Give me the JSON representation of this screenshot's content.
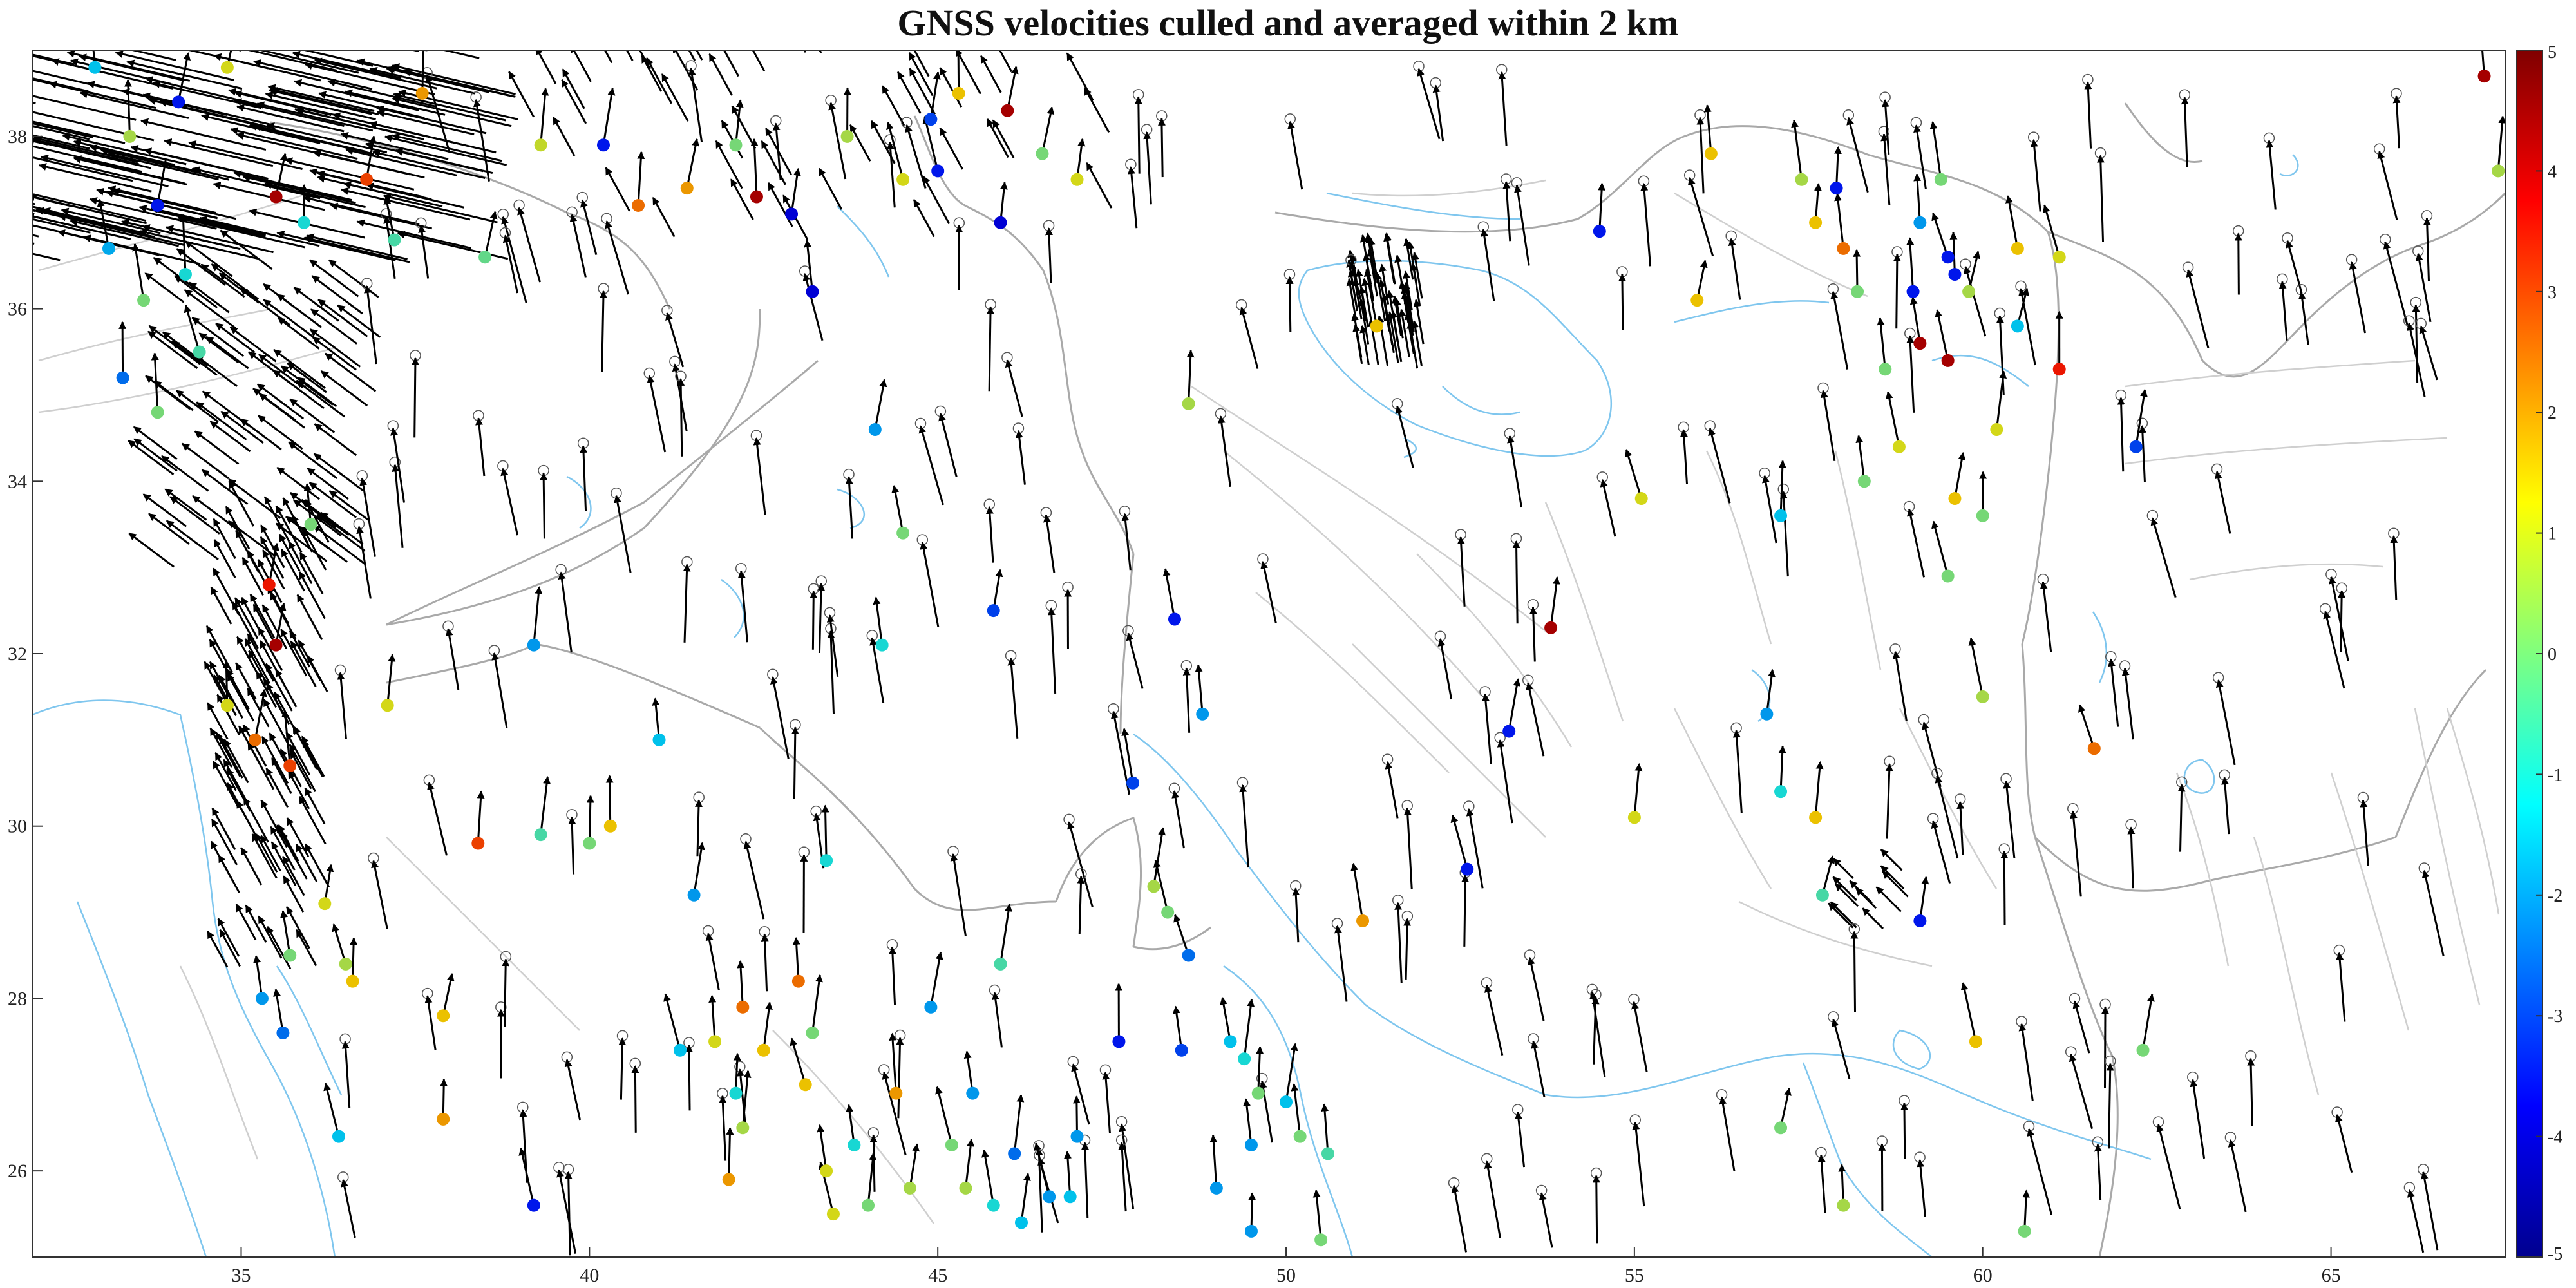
{
  "title": "GNSS velocities culled and averaged within 2 km",
  "map": {
    "lon_range": [
      32,
      67.5
    ],
    "lat_range": [
      25,
      39
    ],
    "lon_ticks": [
      35,
      40,
      45,
      50,
      55,
      60,
      65
    ],
    "lat_ticks": [
      26,
      28,
      30,
      32,
      34,
      36,
      38
    ],
    "coastline_color": "#7fc6ee",
    "border_color": "#a9a9a9",
    "fault_color": "#cfcfcf",
    "arrow_color": "#000000"
  },
  "colorbar": {
    "range": [
      -5,
      5
    ],
    "ticks": [
      5,
      4,
      3,
      2,
      1,
      0,
      -1,
      -2,
      -3,
      -4,
      -5
    ],
    "colormap": "jet",
    "label": ""
  },
  "stations": [
    {
      "lon": 32.9,
      "lat": 38.8,
      "v": -1.5
    },
    {
      "lon": 33.4,
      "lat": 38.0,
      "v": 0.5
    },
    {
      "lon": 33.8,
      "lat": 37.2,
      "v": -3.5
    },
    {
      "lon": 33.1,
      "lat": 36.7,
      "v": -1.8
    },
    {
      "lon": 34.2,
      "lat": 36.4,
      "v": -1.0
    },
    {
      "lon": 33.6,
      "lat": 36.1,
      "v": 0.0
    },
    {
      "lon": 34.4,
      "lat": 35.5,
      "v": -0.5
    },
    {
      "lon": 33.3,
      "lat": 35.2,
      "v": -2.5
    },
    {
      "lon": 33.8,
      "lat": 34.8,
      "v": 0.0
    },
    {
      "lon": 34.1,
      "lat": 38.4,
      "v": -3.5
    },
    {
      "lon": 34.8,
      "lat": 38.8,
      "v": 1.0
    },
    {
      "lon": 35.5,
      "lat": 37.3,
      "v": 4.5
    },
    {
      "lon": 35.9,
      "lat": 37.0,
      "v": -1.0
    },
    {
      "lon": 36.8,
      "lat": 37.5,
      "v": 3.0
    },
    {
      "lon": 37.2,
      "lat": 36.8,
      "v": -0.5
    },
    {
      "lon": 37.6,
      "lat": 38.5,
      "v": 2.0
    },
    {
      "lon": 38.5,
      "lat": 36.6,
      "v": -0.2
    },
    {
      "lon": 39.3,
      "lat": 37.9,
      "v": 0.8
    },
    {
      "lon": 40.2,
      "lat": 37.9,
      "v": -3.5
    },
    {
      "lon": 40.7,
      "lat": 37.2,
      "v": 2.5
    },
    {
      "lon": 41.4,
      "lat": 37.4,
      "v": 2.0
    },
    {
      "lon": 42.1,
      "lat": 37.9,
      "v": 0.0
    },
    {
      "lon": 42.4,
      "lat": 37.3,
      "v": 4.5
    },
    {
      "lon": 42.9,
      "lat": 37.1,
      "v": -4.0
    },
    {
      "lon": 43.7,
      "lat": 38.0,
      "v": 0.5
    },
    {
      "lon": 44.5,
      "lat": 37.5,
      "v": 1.0
    },
    {
      "lon": 44.9,
      "lat": 38.2,
      "v": -3.0
    },
    {
      "lon": 45.3,
      "lat": 38.5,
      "v": 1.5
    },
    {
      "lon": 46.0,
      "lat": 38.3,
      "v": 4.5
    },
    {
      "lon": 46.5,
      "lat": 37.8,
      "v": 0.0
    },
    {
      "lon": 47.0,
      "lat": 37.5,
      "v": 1.0
    },
    {
      "lon": 45.0,
      "lat": 37.6,
      "v": -3.5
    },
    {
      "lon": 45.9,
      "lat": 37.0,
      "v": -4.0
    },
    {
      "lon": 43.2,
      "lat": 36.2,
      "v": -4.0
    },
    {
      "lon": 36.0,
      "lat": 33.5,
      "v": 0.0
    },
    {
      "lon": 35.4,
      "lat": 32.8,
      "v": 3.5
    },
    {
      "lon": 35.5,
      "lat": 32.1,
      "v": 4.5
    },
    {
      "lon": 34.8,
      "lat": 31.4,
      "v": 1.0
    },
    {
      "lon": 35.2,
      "lat": 31.0,
      "v": 2.5
    },
    {
      "lon": 35.7,
      "lat": 30.7,
      "v": 3.0
    },
    {
      "lon": 37.1,
      "lat": 31.4,
      "v": 1.0
    },
    {
      "lon": 36.2,
      "lat": 29.1,
      "v": 1.0
    },
    {
      "lon": 35.7,
      "lat": 28.5,
      "v": 0.0
    },
    {
      "lon": 36.5,
      "lat": 28.4,
      "v": 0.5
    },
    {
      "lon": 36.6,
      "lat": 28.2,
      "v": 1.5
    },
    {
      "lon": 35.3,
      "lat": 28.0,
      "v": -2.0
    },
    {
      "lon": 35.6,
      "lat": 27.6,
      "v": -2.5
    },
    {
      "lon": 36.4,
      "lat": 26.4,
      "v": -1.5
    },
    {
      "lon": 37.9,
      "lat": 27.8,
      "v": 1.5
    },
    {
      "lon": 37.9,
      "lat": 26.6,
      "v": 2.0
    },
    {
      "lon": 38.4,
      "lat": 29.8,
      "v": 3.0
    },
    {
      "lon": 39.3,
      "lat": 29.9,
      "v": -0.5
    },
    {
      "lon": 39.2,
      "lat": 25.6,
      "v": -3.5
    },
    {
      "lon": 39.2,
      "lat": 32.1,
      "v": -2.0
    },
    {
      "lon": 40.0,
      "lat": 29.8,
      "v": 0.0
    },
    {
      "lon": 40.3,
      "lat": 30.0,
      "v": 1.5
    },
    {
      "lon": 41.0,
      "lat": 31.0,
      "v": -1.5
    },
    {
      "lon": 41.5,
      "lat": 29.2,
      "v": -2.0
    },
    {
      "lon": 41.3,
      "lat": 27.4,
      "v": -1.5
    },
    {
      "lon": 41.8,
      "lat": 27.5,
      "v": 1.0
    },
    {
      "lon": 42.2,
      "lat": 27.9,
      "v": 2.5
    },
    {
      "lon": 42.5,
      "lat": 27.4,
      "v": 1.5
    },
    {
      "lon": 42.1,
      "lat": 26.9,
      "v": -1.0
    },
    {
      "lon": 42.2,
      "lat": 26.5,
      "v": 0.5
    },
    {
      "lon": 42.0,
      "lat": 25.9,
      "v": 2.0
    },
    {
      "lon": 43.0,
      "lat": 28.2,
      "v": 2.5
    },
    {
      "lon": 43.2,
      "lat": 27.6,
      "v": 0.0
    },
    {
      "lon": 43.1,
      "lat": 27.0,
      "v": 1.5
    },
    {
      "lon": 43.4,
      "lat": 26.0,
      "v": 1.0
    },
    {
      "lon": 43.5,
      "lat": 25.5,
      "v": 1.0
    },
    {
      "lon": 43.8,
      "lat": 26.3,
      "v": -1.0
    },
    {
      "lon": 44.0,
      "lat": 25.6,
      "v": 0.0
    },
    {
      "lon": 44.4,
      "lat": 26.9,
      "v": 2.0
    },
    {
      "lon": 44.6,
      "lat": 25.8,
      "v": 0.5
    },
    {
      "lon": 44.2,
      "lat": 32.1,
      "v": -1.0
    },
    {
      "lon": 44.1,
      "lat": 34.6,
      "v": -2.0
    },
    {
      "lon": 44.5,
      "lat": 33.4,
      "v": 0.0
    },
    {
      "lon": 43.4,
      "lat": 29.6,
      "v": -1.0
    },
    {
      "lon": 44.9,
      "lat": 27.9,
      "v": -2.0
    },
    {
      "lon": 45.2,
      "lat": 26.3,
      "v": 0.0
    },
    {
      "lon": 45.4,
      "lat": 25.8,
      "v": 0.5
    },
    {
      "lon": 45.5,
      "lat": 26.9,
      "v": -2.0
    },
    {
      "lon": 45.8,
      "lat": 25.6,
      "v": -1.0
    },
    {
      "lon": 46.1,
      "lat": 26.2,
      "v": -2.5
    },
    {
      "lon": 46.2,
      "lat": 25.4,
      "v": -1.5
    },
    {
      "lon": 46.6,
      "lat": 25.7,
      "v": -2.0
    },
    {
      "lon": 45.9,
      "lat": 28.4,
      "v": -0.5
    },
    {
      "lon": 45.8,
      "lat": 32.5,
      "v": -3.0
    },
    {
      "lon": 47.0,
      "lat": 26.4,
      "v": -2.0
    },
    {
      "lon": 46.9,
      "lat": 25.7,
      "v": -1.5
    },
    {
      "lon": 47.6,
      "lat": 27.5,
      "v": -3.5
    },
    {
      "lon": 47.8,
      "lat": 30.5,
      "v": -3.0
    },
    {
      "lon": 48.1,
      "lat": 29.3,
      "v": 0.5
    },
    {
      "lon": 48.3,
      "lat": 29.0,
      "v": 0.0
    },
    {
      "lon": 48.4,
      "lat": 32.4,
      "v": -3.5
    },
    {
      "lon": 48.6,
      "lat": 28.5,
      "v": -2.5
    },
    {
      "lon": 48.6,
      "lat": 34.9,
      "v": 0.5
    },
    {
      "lon": 48.5,
      "lat": 27.4,
      "v": -3.0
    },
    {
      "lon": 48.8,
      "lat": 31.3,
      "v": -2.0
    },
    {
      "lon": 49.0,
      "lat": 25.8,
      "v": -2.0
    },
    {
      "lon": 49.2,
      "lat": 27.5,
      "v": -1.5
    },
    {
      "lon": 49.4,
      "lat": 27.3,
      "v": -1.0
    },
    {
      "lon": 49.6,
      "lat": 26.9,
      "v": 0.0
    },
    {
      "lon": 49.5,
      "lat": 26.3,
      "v": -2.0
    },
    {
      "lon": 49.5,
      "lat": 25.3,
      "v": -2.0
    },
    {
      "lon": 50.0,
      "lat": 26.8,
      "v": -1.5
    },
    {
      "lon": 50.2,
      "lat": 26.4,
      "v": 0.0
    },
    {
      "lon": 50.6,
      "lat": 26.2,
      "v": -0.5
    },
    {
      "lon": 50.5,
      "lat": 25.2,
      "v": 0.0
    },
    {
      "lon": 51.1,
      "lat": 28.9,
      "v": 2.0
    },
    {
      "lon": 51.3,
      "lat": 35.8,
      "v": 1.5
    },
    {
      "lon": 52.6,
      "lat": 29.5,
      "v": -3.5
    },
    {
      "lon": 53.2,
      "lat": 31.1,
      "v": -3.5
    },
    {
      "lon": 53.8,
      "lat": 32.3,
      "v": 4.5
    },
    {
      "lon": 54.5,
      "lat": 36.9,
      "v": -3.5
    },
    {
      "lon": 55.0,
      "lat": 30.1,
      "v": 1.0
    },
    {
      "lon": 55.1,
      "lat": 33.8,
      "v": 1.0
    },
    {
      "lon": 55.9,
      "lat": 36.1,
      "v": 1.5
    },
    {
      "lon": 56.1,
      "lat": 37.8,
      "v": 1.5
    },
    {
      "lon": 56.9,
      "lat": 31.3,
      "v": -2.0
    },
    {
      "lon": 57.1,
      "lat": 33.6,
      "v": -1.5
    },
    {
      "lon": 57.1,
      "lat": 30.4,
      "v": -1.0
    },
    {
      "lon": 57.1,
      "lat": 26.5,
      "v": 0.0
    },
    {
      "lon": 57.6,
      "lat": 30.1,
      "v": 1.5
    },
    {
      "lon": 57.7,
      "lat": 29.2,
      "v": -0.5
    },
    {
      "lon": 57.4,
      "lat": 37.5,
      "v": 0.5
    },
    {
      "lon": 57.6,
      "lat": 37.0,
      "v": 1.5
    },
    {
      "lon": 57.9,
      "lat": 37.4,
      "v": -3.5
    },
    {
      "lon": 58.0,
      "lat": 36.7,
      "v": 2.5
    },
    {
      "lon": 58.2,
      "lat": 36.2,
      "v": 0.0
    },
    {
      "lon": 58.3,
      "lat": 34.0,
      "v": 0.0
    },
    {
      "lon": 58.6,
      "lat": 35.3,
      "v": 0.0
    },
    {
      "lon": 58.8,
      "lat": 34.4,
      "v": 1.0
    },
    {
      "lon": 59.1,
      "lat": 35.6,
      "v": 4.5
    },
    {
      "lon": 59.0,
      "lat": 36.2,
      "v": -3.5
    },
    {
      "lon": 59.1,
      "lat": 37.0,
      "v": -2.0
    },
    {
      "lon": 59.5,
      "lat": 35.4,
      "v": 4.5
    },
    {
      "lon": 59.5,
      "lat": 36.6,
      "v": -3.5
    },
    {
      "lon": 59.4,
      "lat": 37.5,
      "v": 0.0
    },
    {
      "lon": 59.6,
      "lat": 36.4,
      "v": -3.5
    },
    {
      "lon": 59.8,
      "lat": 36.2,
      "v": 0.5
    },
    {
      "lon": 59.6,
      "lat": 33.8,
      "v": 1.5
    },
    {
      "lon": 59.5,
      "lat": 32.9,
      "v": 0.0
    },
    {
      "lon": 60.0,
      "lat": 33.6,
      "v": 0.0
    },
    {
      "lon": 60.0,
      "lat": 31.5,
      "v": 0.5
    },
    {
      "lon": 59.1,
      "lat": 28.9,
      "v": -3.5
    },
    {
      "lon": 59.9,
      "lat": 27.5,
      "v": 1.5
    },
    {
      "lon": 60.2,
      "lat": 34.6,
      "v": 1.0
    },
    {
      "lon": 60.5,
      "lat": 35.8,
      "v": -1.5
    },
    {
      "lon": 60.5,
      "lat": 36.7,
      "v": 1.5
    },
    {
      "lon": 61.1,
      "lat": 35.3,
      "v": 3.5
    },
    {
      "lon": 61.1,
      "lat": 36.6,
      "v": 1.0
    },
    {
      "lon": 62.3,
      "lat": 27.4,
      "v": 0.0
    },
    {
      "lon": 62.2,
      "lat": 34.4,
      "v": -3.0
    },
    {
      "lon": 61.6,
      "lat": 30.9,
      "v": 2.5
    },
    {
      "lon": 58.0,
      "lat": 25.6,
      "v": 0.5
    },
    {
      "lon": 60.6,
      "lat": 25.3,
      "v": 0.0
    },
    {
      "lon": 67.2,
      "lat": 38.7,
      "v": 4.5
    },
    {
      "lon": 67.4,
      "lat": 37.6,
      "v": 0.5
    }
  ],
  "dense_arrow_clusters": [
    {
      "lon": [
        32,
        39
      ],
      "lat": [
        36.5,
        39
      ],
      "count": 160,
      "dlon": -1.5,
      "dlat": 0.35
    },
    {
      "lon": [
        34,
        37
      ],
      "lat": [
        33,
        36.5
      ],
      "count": 90,
      "dlon": -0.6,
      "dlat": 0.45
    },
    {
      "lon": [
        34.8,
        36.3
      ],
      "lat": [
        28.3,
        33.5
      ],
      "count": 120,
      "dlon": -0.3,
      "dlat": 0.55
    },
    {
      "lon": [
        51,
        52
      ],
      "lat": [
        35.3,
        36.4
      ],
      "count": 50,
      "dlon": -0.1,
      "dlat": 0.6
    },
    {
      "lon": [
        58,
        59
      ],
      "lat": [
        28.8,
        29.5
      ],
      "count": 12,
      "dlon": -0.3,
      "dlat": 0.3
    },
    {
      "lon": [
        39,
        47.5
      ],
      "lat": [
        36.8,
        39
      ],
      "count": 50,
      "dlon": -0.3,
      "dlat": 0.55
    }
  ],
  "scattered_arrows": {
    "lon": [
      36.5,
      67
    ],
    "lat": [
      25,
      38
    ],
    "count": 240,
    "dlon": -0.1,
    "dlat": 0.75
  }
}
